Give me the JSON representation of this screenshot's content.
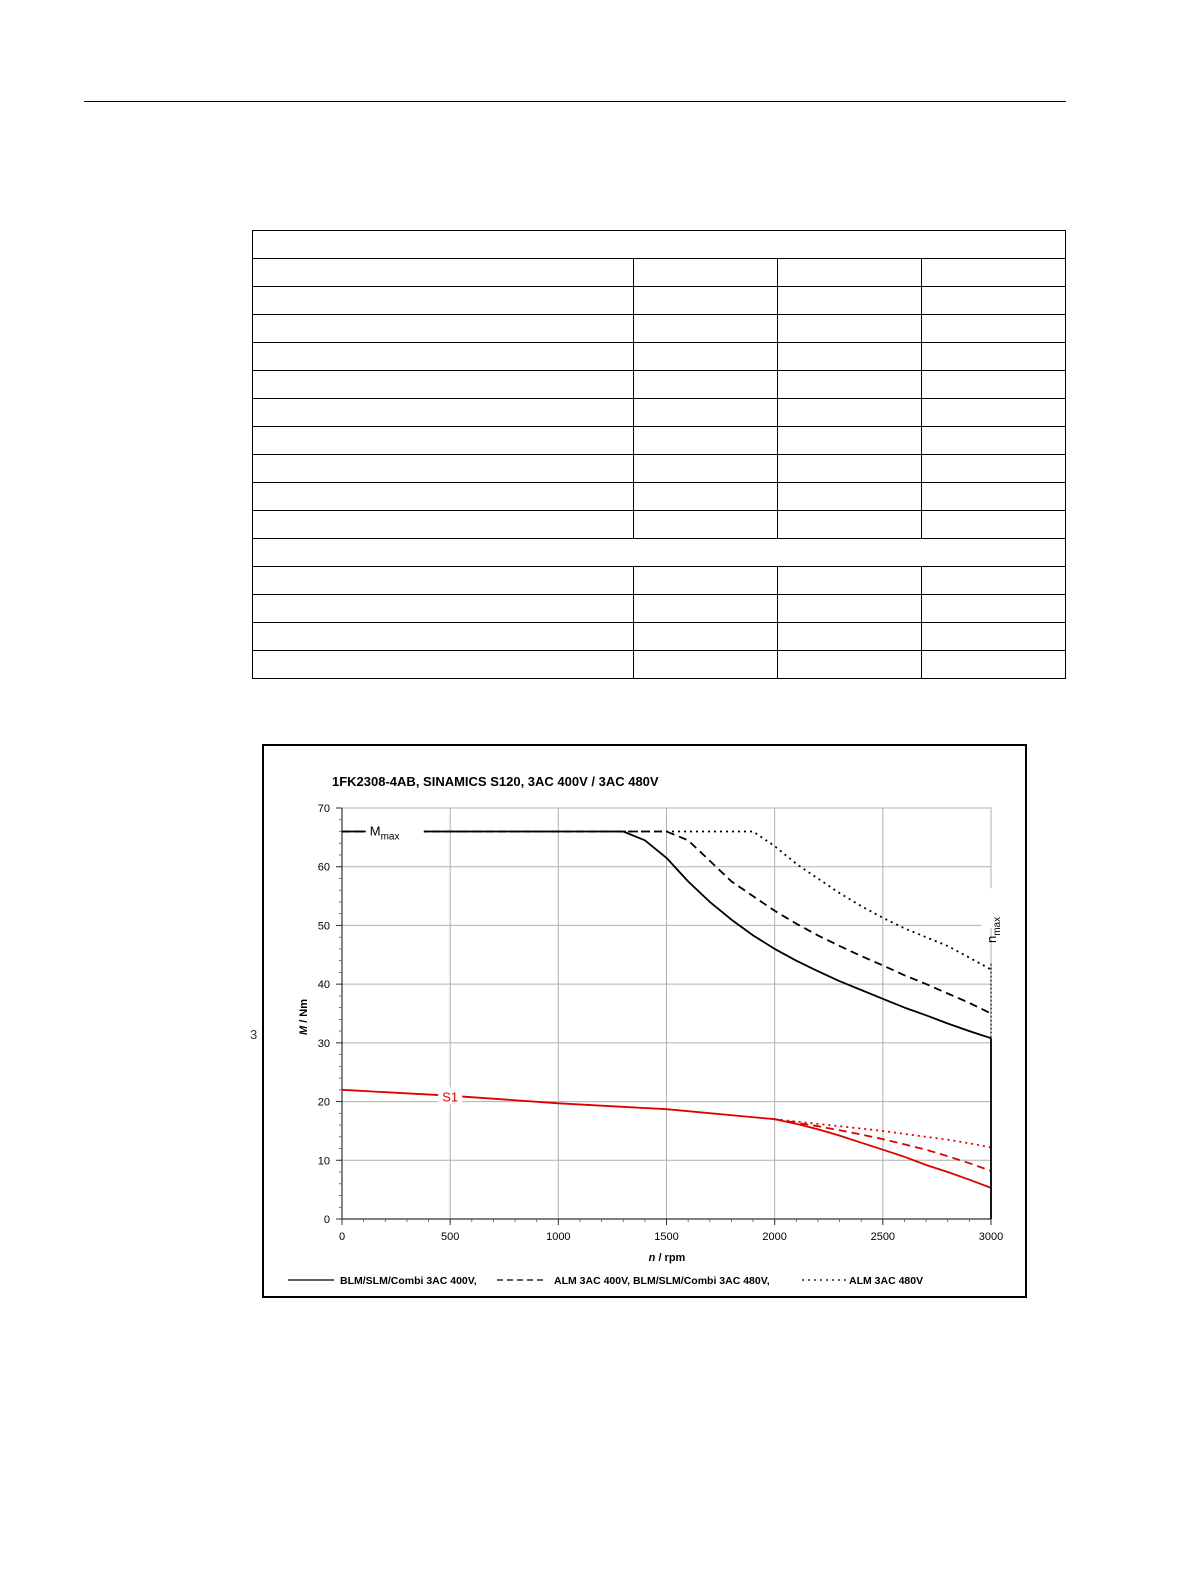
{
  "page": {
    "side_marker": "3"
  },
  "table": {
    "header_row": [
      ""
    ],
    "rows_group1": [
      [
        "",
        "",
        "",
        ""
      ],
      [
        "",
        "",
        "",
        ""
      ],
      [
        "",
        "",
        "",
        ""
      ],
      [
        "",
        "",
        "",
        ""
      ],
      [
        "",
        "",
        "",
        ""
      ],
      [
        "",
        "",
        "",
        ""
      ],
      [
        "",
        "",
        "",
        ""
      ],
      [
        "",
        "",
        "",
        ""
      ],
      [
        "",
        "",
        "",
        ""
      ],
      [
        "",
        "",
        "",
        ""
      ]
    ],
    "section_row": [
      ""
    ],
    "rows_group2": [
      [
        "",
        "",
        "",
        ""
      ],
      [
        "",
        "",
        "",
        ""
      ],
      [
        "",
        "",
        "",
        ""
      ],
      [
        "",
        "",
        "",
        ""
      ]
    ]
  },
  "chart_data": {
    "type": "line",
    "title": "1FK2308-4AB,  SINAMICS S120,  3AC 400V / 3AC 480V",
    "xlabel_var": "n",
    "xlabel_unit": " / rpm",
    "ylabel_var": "M",
    "ylabel_unit": " / Nm",
    "xlim": [
      0,
      3000
    ],
    "ylim": [
      0,
      70
    ],
    "xticks": [
      0,
      500,
      1000,
      1500,
      2000,
      2500,
      3000
    ],
    "yticks": [
      0,
      10,
      20,
      30,
      40,
      50,
      60,
      70
    ],
    "grid": true,
    "annotations": {
      "mmax_main": "M",
      "mmax_sub": "max",
      "nmax_main": "n",
      "nmax_sub": "max",
      "s1": "S1"
    },
    "series": [
      {
        "name": "BLM/SLM/Combi 3AC 400V,",
        "style": "solid",
        "color": "#000000",
        "group": "Mmax",
        "x": [
          0,
          1300,
          1400,
          1500,
          1600,
          1700,
          1800,
          1900,
          2000,
          2100,
          2200,
          2300,
          2400,
          2500,
          2600,
          2700,
          2800,
          2900,
          3000
        ],
        "y": [
          66,
          66,
          64.5,
          61.5,
          57.5,
          54,
          51,
          48.3,
          46,
          44,
          42.2,
          40.5,
          39,
          37.5,
          36,
          34.7,
          33.3,
          32,
          30.8
        ]
      },
      {
        "name": "ALM 3AC 400V, BLM/SLM/Combi 3AC 480V,",
        "style": "dashed",
        "color": "#000000",
        "group": "Mmax",
        "x": [
          0,
          1500,
          1600,
          1700,
          1800,
          1900,
          2000,
          2100,
          2200,
          2300,
          2400,
          2500,
          2600,
          2700,
          2800,
          2900,
          3000
        ],
        "y": [
          66,
          66,
          64.5,
          61,
          57.5,
          55,
          52.5,
          50.3,
          48.3,
          46.5,
          44.8,
          43.2,
          41.5,
          40,
          38.4,
          36.8,
          35
        ]
      },
      {
        "name": "ALM 3AC 480V",
        "style": "dotted",
        "color": "#000000",
        "group": "Mmax",
        "x": [
          0,
          1900,
          2000,
          2100,
          2200,
          2300,
          2400,
          2500,
          2600,
          2700,
          2800,
          2900,
          3000
        ],
        "y": [
          66,
          66,
          63.5,
          60.5,
          58,
          55.5,
          53.3,
          51.3,
          49.5,
          48,
          46.5,
          44.5,
          42.5
        ]
      },
      {
        "name": "BLM/SLM/Combi 3AC 400V,",
        "style": "solid",
        "color": "#dd0000",
        "group": "S1",
        "x": [
          0,
          500,
          1000,
          1500,
          2000,
          2100,
          2200,
          2300,
          2400,
          2500,
          2600,
          2700,
          2800,
          2900,
          3000
        ],
        "y": [
          22,
          21,
          19.7,
          18.7,
          17,
          16.2,
          15.3,
          14.2,
          13,
          11.8,
          10.6,
          9.2,
          8,
          6.7,
          5.3
        ]
      },
      {
        "name": "ALM 3AC 400V, BLM/SLM/Combi 3AC 480V,",
        "style": "dashed",
        "color": "#dd0000",
        "group": "S1",
        "x": [
          2000,
          2100,
          2200,
          2300,
          2400,
          2500,
          2600,
          2700,
          2800,
          2900,
          3000
        ],
        "y": [
          17,
          16.4,
          15.8,
          15.1,
          14.4,
          13.6,
          12.7,
          11.8,
          10.7,
          9.5,
          8.2
        ]
      },
      {
        "name": "ALM 3AC 480V",
        "style": "dotted",
        "color": "#dd0000",
        "group": "S1",
        "x": [
          2000,
          2100,
          2200,
          2300,
          2400,
          2500,
          2600,
          2700,
          2800,
          2900,
          3000
        ],
        "y": [
          17,
          16.6,
          16.2,
          15.8,
          15.4,
          15,
          14.5,
          14,
          13.5,
          12.9,
          12.2
        ]
      }
    ],
    "legend": {
      "placement": "bottom",
      "items": [
        {
          "label": "BLM/SLM/Combi 3AC 400V,",
          "style": "solid"
        },
        {
          "label": "ALM 3AC 400V, BLM/SLM/Combi 3AC 480V,",
          "style": "dashed"
        },
        {
          "label": "ALM 3AC 480V",
          "style": "dotted"
        }
      ]
    }
  }
}
